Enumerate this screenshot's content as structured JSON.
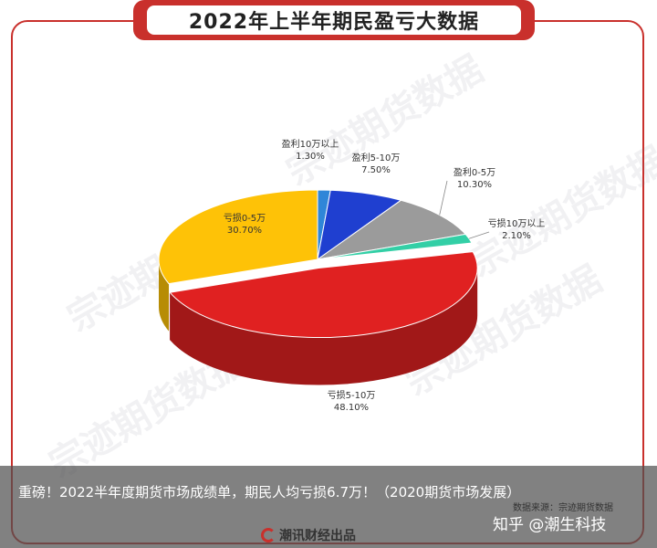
{
  "header": {
    "title": "2022年上半年期民盈亏大数据"
  },
  "watermark": "宗迹期货数据",
  "chart_data": {
    "type": "pie",
    "title": "2022年上半年期民盈亏大数据",
    "slices": [
      {
        "label": "盈利10万以上",
        "value": 1.3,
        "text": "1.30%",
        "color": "#2f86d8"
      },
      {
        "label": "盈利5-10万",
        "value": 7.5,
        "text": "7.50%",
        "color": "#1f3fd0"
      },
      {
        "label": "盈利0-5万",
        "value": 10.3,
        "text": "10.30%",
        "color": "#9b9b9b"
      },
      {
        "label": "亏损10万以上",
        "value": 2.1,
        "text": "2.10%",
        "color": "#33cfa6"
      },
      {
        "label": "亏损5-10万",
        "value": 48.1,
        "text": "48.10%",
        "color": "#e02121"
      },
      {
        "label": "亏损0-5万",
        "value": 30.7,
        "text": "30.70%",
        "color": "#fec207"
      }
    ]
  },
  "source": "数据来源：宗迹期货数据",
  "banner": {
    "text": "重磅！2022半年度期货市场成绩单，期民人均亏损6.7万！（2020期货市场发展）"
  },
  "zhihu": "知乎 @潮生科技",
  "brand": "潮讯财经出品"
}
